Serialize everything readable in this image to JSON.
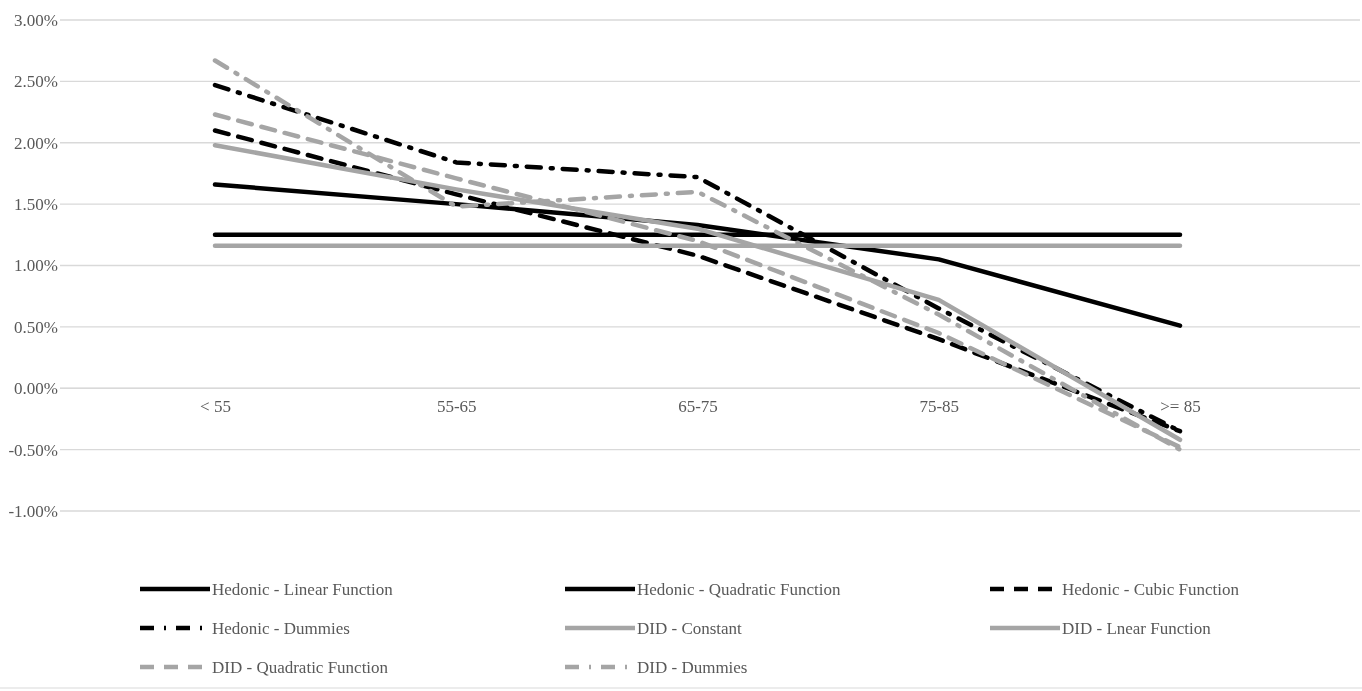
{
  "chart_data": {
    "type": "line",
    "categories": [
      "< 55",
      "55-65",
      "65-75",
      "75-85",
      ">= 85"
    ],
    "ylim": [
      -1,
      3
    ],
    "yticks": [
      {
        "value": -1,
        "label": "-1.00%"
      },
      {
        "value": -0.5,
        "label": "-0.50%"
      },
      {
        "value": 0,
        "label": "0.00%"
      },
      {
        "value": 0.5,
        "label": "0.50%"
      },
      {
        "value": 1,
        "label": "1.00%"
      },
      {
        "value": 1.5,
        "label": "1.50%"
      },
      {
        "value": 2,
        "label": "2.00%"
      },
      {
        "value": 2.5,
        "label": "2.50%"
      },
      {
        "value": 3,
        "label": "3.00%"
      }
    ],
    "grid": "y",
    "legend": "bottom",
    "marker": "none",
    "series": [
      {
        "name": "Hedonic - Linear Function",
        "color": "#000000",
        "line_style": "solid",
        "values": [
          1.25,
          1.25,
          1.25,
          1.25,
          1.25
        ]
      },
      {
        "name": "Hedonic - Quadratic Function",
        "color": "#000000",
        "line_style": "solid",
        "values": [
          1.66,
          1.5,
          1.33,
          1.05,
          0.51
        ]
      },
      {
        "name": "Hedonic - Cubic Function",
        "color": "#000000",
        "line_style": "dashed",
        "values": [
          2.1,
          1.58,
          1.08,
          0.4,
          -0.35
        ]
      },
      {
        "name": "Hedonic - Dummies",
        "color": "#000000",
        "line_style": "dashdot",
        "values": [
          2.47,
          1.84,
          1.72,
          0.65,
          -0.35
        ]
      },
      {
        "name": "DID - Constant",
        "color": "#a5a5a5",
        "line_style": "solid",
        "values": [
          1.16,
          1.16,
          1.16,
          1.16,
          1.16
        ]
      },
      {
        "name": "DID - Lnear Function",
        "color": "#a5a5a5",
        "line_style": "solid",
        "values": [
          1.98,
          1.62,
          1.3,
          0.72,
          -0.42
        ]
      },
      {
        "name": "DID - Quadratic Function",
        "color": "#a5a5a5",
        "line_style": "dashed",
        "values": [
          2.23,
          1.71,
          1.2,
          0.45,
          -0.48
        ]
      },
      {
        "name": "DID - Dummies",
        "color": "#a5a5a5",
        "line_style": "dashdot",
        "values": [
          2.67,
          1.48,
          1.6,
          0.6,
          -0.5
        ]
      }
    ]
  }
}
